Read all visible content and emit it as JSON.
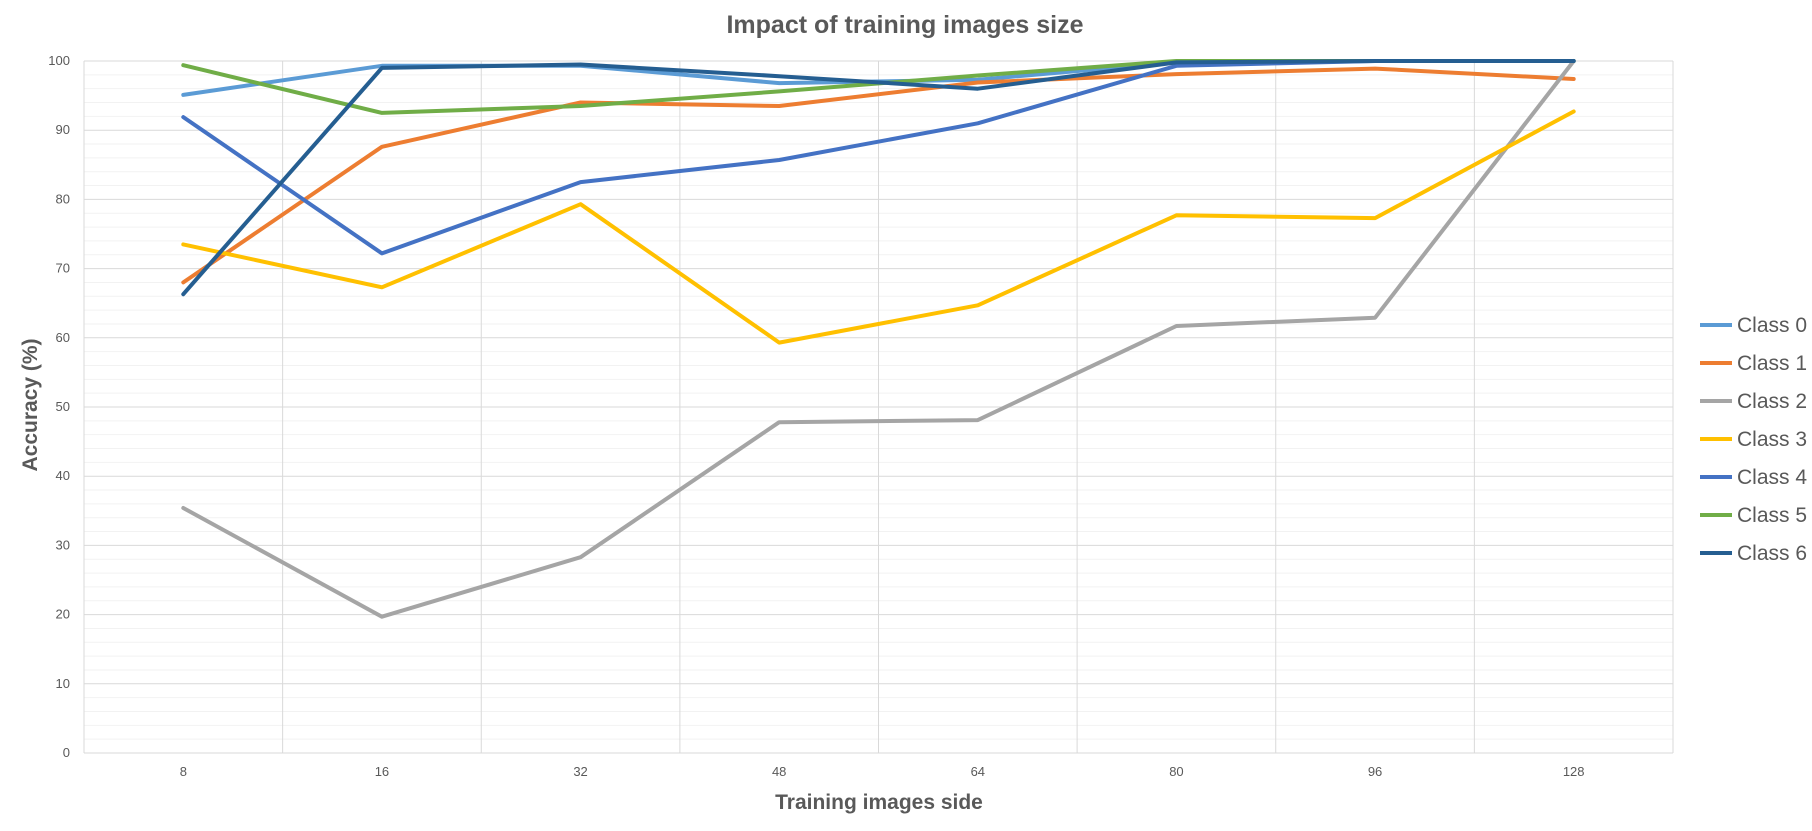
{
  "chart_data": {
    "type": "line",
    "title": "Impact of training images size",
    "xlabel": "Training images side",
    "ylabel": "Accuracy (%)",
    "categories": [
      "8",
      "16",
      "32",
      "48",
      "64",
      "80",
      "96",
      "128"
    ],
    "ylim": [
      0,
      100
    ],
    "yticks": [
      0,
      10,
      20,
      30,
      40,
      50,
      60,
      70,
      80,
      90,
      100
    ],
    "grid": {
      "major": true,
      "minor": true
    },
    "legend_position": "right",
    "series": [
      {
        "name": "Class 0",
        "color": "#5b9bd5",
        "values": [
          95.1,
          99.3,
          99.3,
          96.8,
          97.3,
          99.8,
          100,
          100
        ]
      },
      {
        "name": "Class 1",
        "color": "#ed7d31",
        "values": [
          68.0,
          87.6,
          94.0,
          93.5,
          96.9,
          98.1,
          98.9,
          97.4
        ]
      },
      {
        "name": "Class 2",
        "color": "#a5a5a5",
        "values": [
          35.4,
          19.7,
          28.3,
          47.8,
          48.1,
          61.7,
          62.9,
          100
        ]
      },
      {
        "name": "Class 3",
        "color": "#ffc000",
        "values": [
          73.5,
          67.3,
          79.3,
          59.3,
          64.7,
          77.7,
          77.3,
          92.7
        ]
      },
      {
        "name": "Class 4",
        "color": "#4472c4",
        "values": [
          91.9,
          72.2,
          82.5,
          85.7,
          91.0,
          99.3,
          100,
          100
        ]
      },
      {
        "name": "Class 5",
        "color": "#70ad47",
        "values": [
          99.4,
          92.5,
          93.5,
          95.6,
          97.9,
          100,
          100,
          100
        ]
      },
      {
        "name": "Class 6",
        "color": "#255e91",
        "values": [
          66.3,
          99.0,
          99.5,
          97.8,
          96.0,
          99.8,
          100,
          100
        ]
      }
    ]
  }
}
